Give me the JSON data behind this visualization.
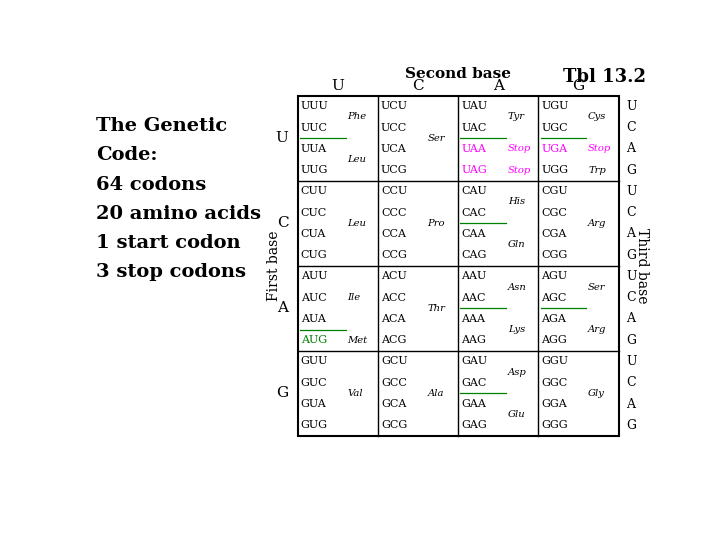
{
  "title": "Tbl 13.2",
  "second_base_label": "Second base",
  "first_base_label": "First base",
  "third_base_label": "Third base",
  "left_text_lines": [
    "The Genetic",
    "Code:",
    "64 codons",
    "20 amino acids",
    "1 start codon",
    "3 stop codons"
  ],
  "first_bases": [
    "U",
    "C",
    "A",
    "G"
  ],
  "second_bases": [
    "U",
    "C",
    "A",
    "G"
  ],
  "third_bases": [
    "U",
    "C",
    "A",
    "G"
  ],
  "cells": {
    "UU": {
      "codons": [
        "UUU",
        "UUC",
        "UUA",
        "UUG"
      ],
      "aa": "Phe",
      "aa_rows": [
        0,
        1
      ],
      "aa2": "Leu",
      "aa2_rows": [
        2,
        3
      ],
      "line_after_row": 1,
      "codon_colors": [
        "black",
        "black",
        "black",
        "black"
      ],
      "aa_color": "black",
      "aa2_color": "black"
    },
    "UC": {
      "codons": [
        "UCU",
        "UCC",
        "UCA",
        "UCG"
      ],
      "aa": "Ser",
      "aa_rows": [
        0,
        3
      ],
      "aa2": null,
      "aa2_rows": null,
      "line_after_row": -1,
      "codon_colors": [
        "black",
        "black",
        "black",
        "black"
      ],
      "aa_color": "black",
      "aa2_color": "black"
    },
    "UA": {
      "codons": [
        "UAU",
        "UAC",
        "UAA",
        "UAG"
      ],
      "aa": "Tyr",
      "aa_rows": [
        0,
        1
      ],
      "aa2": "Stop",
      "aa2_rows": [
        2,
        2
      ],
      "aa3": "Stop",
      "aa3_rows": [
        3,
        3
      ],
      "line_after_row": 1,
      "codon_colors": [
        "black",
        "black",
        "magenta",
        "magenta"
      ],
      "aa_color": "black",
      "aa2_color": "magenta",
      "aa3_color": "magenta"
    },
    "UG": {
      "codons": [
        "UGU",
        "UGC",
        "UGA",
        "UGG"
      ],
      "aa": "Cys",
      "aa_rows": [
        0,
        1
      ],
      "aa2": "Stop",
      "aa2_rows": [
        2,
        2
      ],
      "aa3": "Trp",
      "aa3_rows": [
        3,
        3
      ],
      "line_after_row": 1,
      "codon_colors": [
        "black",
        "black",
        "magenta",
        "black"
      ],
      "aa_color": "black",
      "aa2_color": "magenta",
      "aa3_color": "black"
    },
    "CU": {
      "codons": [
        "CUU",
        "CUC",
        "CUA",
        "CUG"
      ],
      "aa": "Leu",
      "aa_rows": [
        1,
        2
      ],
      "aa2": null,
      "aa2_rows": null,
      "line_after_row": -1,
      "codon_colors": [
        "black",
        "black",
        "black",
        "black"
      ],
      "aa_color": "black",
      "aa2_color": "black"
    },
    "CC": {
      "codons": [
        "CCU",
        "CCC",
        "CCA",
        "CCG"
      ],
      "aa": "Pro",
      "aa_rows": [
        1,
        2
      ],
      "aa2": null,
      "aa2_rows": null,
      "line_after_row": -1,
      "codon_colors": [
        "black",
        "black",
        "black",
        "black"
      ],
      "aa_color": "black",
      "aa2_color": "black"
    },
    "CA": {
      "codons": [
        "CAU",
        "CAC",
        "CAA",
        "CAG"
      ],
      "aa": "His",
      "aa_rows": [
        0,
        1
      ],
      "aa2": "Gln",
      "aa2_rows": [
        2,
        3
      ],
      "line_after_row": 1,
      "codon_colors": [
        "black",
        "black",
        "black",
        "black"
      ],
      "aa_color": "black",
      "aa2_color": "black"
    },
    "CG": {
      "codons": [
        "CGU",
        "CGC",
        "CGA",
        "CGG"
      ],
      "aa": "Arg",
      "aa_rows": [
        1,
        2
      ],
      "aa2": null,
      "aa2_rows": null,
      "line_after_row": -1,
      "codon_colors": [
        "black",
        "black",
        "black",
        "black"
      ],
      "aa_color": "black",
      "aa2_color": "black"
    },
    "AU": {
      "codons": [
        "AUU",
        "AUC",
        "AUA",
        "AUG"
      ],
      "aa": "Ile",
      "aa_rows": [
        1,
        1
      ],
      "aa2": "Met",
      "aa2_rows": [
        3,
        3
      ],
      "line_after_row": 2,
      "codon_colors": [
        "black",
        "black",
        "black",
        "green"
      ],
      "aa_color": "black",
      "aa2_color": "black"
    },
    "AC": {
      "codons": [
        "ACU",
        "ACC",
        "ACA",
        "ACG"
      ],
      "aa": "Thr",
      "aa_rows": [
        1,
        2
      ],
      "aa2": null,
      "aa2_rows": null,
      "line_after_row": -1,
      "codon_colors": [
        "black",
        "black",
        "black",
        "black"
      ],
      "aa_color": "black",
      "aa2_color": "black"
    },
    "AA": {
      "codons": [
        "AAU",
        "AAC",
        "AAA",
        "AAG"
      ],
      "aa": "Asn",
      "aa_rows": [
        0,
        1
      ],
      "aa2": "Lys",
      "aa2_rows": [
        2,
        3
      ],
      "line_after_row": 1,
      "codon_colors": [
        "black",
        "black",
        "black",
        "black"
      ],
      "aa_color": "black",
      "aa2_color": "black"
    },
    "AG": {
      "codons": [
        "AGU",
        "AGC",
        "AGA",
        "AGG"
      ],
      "aa": "Ser",
      "aa_rows": [
        0,
        1
      ],
      "aa2": "Arg",
      "aa2_rows": [
        2,
        3
      ],
      "line_after_row": 1,
      "codon_colors": [
        "black",
        "black",
        "black",
        "black"
      ],
      "aa_color": "black",
      "aa2_color": "black"
    },
    "GU": {
      "codons": [
        "GUU",
        "GUC",
        "GUA",
        "GUG"
      ],
      "aa": "Val",
      "aa_rows": [
        1,
        2
      ],
      "aa2": null,
      "aa2_rows": null,
      "line_after_row": -1,
      "codon_colors": [
        "black",
        "black",
        "black",
        "black"
      ],
      "aa_color": "black",
      "aa2_color": "black"
    },
    "GC": {
      "codons": [
        "GCU",
        "GCC",
        "GCA",
        "GCG"
      ],
      "aa": "Ala",
      "aa_rows": [
        1,
        2
      ],
      "aa2": null,
      "aa2_rows": null,
      "line_after_row": -1,
      "codon_colors": [
        "black",
        "black",
        "black",
        "black"
      ],
      "aa_color": "black",
      "aa2_color": "black"
    },
    "GA": {
      "codons": [
        "GAU",
        "GAC",
        "GAA",
        "GAG"
      ],
      "aa": "Asp",
      "aa_rows": [
        0,
        1
      ],
      "aa2": "Glu",
      "aa2_rows": [
        2,
        3
      ],
      "line_after_row": 1,
      "codon_colors": [
        "black",
        "black",
        "black",
        "black"
      ],
      "aa_color": "black",
      "aa2_color": "black"
    },
    "GG": {
      "codons": [
        "GGU",
        "GGC",
        "GGA",
        "GGG"
      ],
      "aa": "Gly",
      "aa_rows": [
        1,
        2
      ],
      "aa2": null,
      "aa2_rows": null,
      "line_after_row": -1,
      "codon_colors": [
        "black",
        "black",
        "black",
        "black"
      ],
      "aa_color": "black",
      "aa2_color": "black"
    }
  }
}
